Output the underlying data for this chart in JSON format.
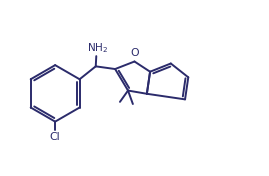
{
  "bg_color": "#ffffff",
  "line_color": "#2b2b6b",
  "line_width": 1.4,
  "font_size": 7.5,
  "figsize": [
    2.69,
    1.76
  ],
  "dpi": 100
}
